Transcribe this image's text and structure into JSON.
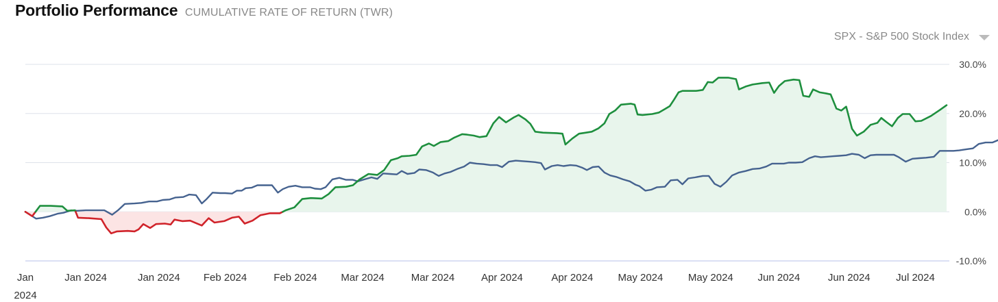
{
  "header": {
    "title": "Portfolio Performance",
    "subtitle": "CUMULATIVE RATE OF RETURN (TWR)"
  },
  "benchmark": {
    "label": "SPX - S&P 500 Stock Index"
  },
  "colors": {
    "portfolio_up": "#1e8f3e",
    "portfolio_down": "#d0232a",
    "fill_up": "#e8f5ec",
    "fill_down": "#fce4e4",
    "benchmark": "#45628f",
    "grid": "#dde2ea",
    "baseline": "#cdd5f0"
  },
  "chart_data": {
    "type": "line",
    "ylim": [
      -10,
      30
    ],
    "yticks": [
      "30.0%",
      "20.0%",
      "10.0%",
      "0.0%",
      "-10.0%"
    ],
    "ytick_values": [
      30,
      20,
      10,
      0,
      -10
    ],
    "grid": true,
    "xticks": [
      {
        "pos": 0,
        "label": "Jan",
        "label2": "2024"
      },
      {
        "pos": 6.2,
        "label": "Jan 2024"
      },
      {
        "pos": 13.7,
        "label": "Jan 2024"
      },
      {
        "pos": 20.5,
        "label": "Feb 2024"
      },
      {
        "pos": 27.7,
        "label": "Feb 2024"
      },
      {
        "pos": 34.6,
        "label": "Mar 2024"
      },
      {
        "pos": 41.8,
        "label": "Mar 2024"
      },
      {
        "pos": 48.9,
        "label": "Apr 2024"
      },
      {
        "pos": 56.1,
        "label": "Apr 2024"
      },
      {
        "pos": 63.1,
        "label": "May 2024"
      },
      {
        "pos": 70.3,
        "label": "May 2024"
      },
      {
        "pos": 77.3,
        "label": "Jun 2024"
      },
      {
        "pos": 84.5,
        "label": "Jun 2024"
      },
      {
        "pos": 91.3,
        "label": "Jul 2024"
      }
    ],
    "series": [
      {
        "role": "portfolio",
        "points": [
          [
            0,
            0
          ],
          [
            0.7,
            -0.9
          ],
          [
            1.5,
            1.2
          ],
          [
            2.6,
            1.2
          ],
          [
            3.8,
            1.1
          ],
          [
            4.3,
            0.2
          ],
          [
            5.1,
            0.3
          ],
          [
            5.4,
            -1.2
          ],
          [
            6.5,
            -1.3
          ],
          [
            7.8,
            -1.5
          ],
          [
            8.3,
            -3.2
          ],
          [
            8.8,
            -4.4
          ],
          [
            9.4,
            -4.0
          ],
          [
            10.5,
            -3.9
          ],
          [
            11.2,
            -4.0
          ],
          [
            11.6,
            -3.6
          ],
          [
            12.1,
            -2.5
          ],
          [
            12.8,
            -3.3
          ],
          [
            13.4,
            -2.5
          ],
          [
            14.3,
            -2.4
          ],
          [
            14.9,
            -2.6
          ],
          [
            15.3,
            -1.6
          ],
          [
            16.1,
            -1.9
          ],
          [
            16.9,
            -1.8
          ],
          [
            17.5,
            -2.3
          ],
          [
            18.1,
            -2.8
          ],
          [
            18.8,
            -1.3
          ],
          [
            19.4,
            -2.2
          ],
          [
            20.4,
            -1.9
          ],
          [
            21.2,
            -1.2
          ],
          [
            21.9,
            -1.0
          ],
          [
            22.5,
            -2.4
          ],
          [
            23.3,
            -1.8
          ],
          [
            24.1,
            -0.7
          ],
          [
            25.1,
            -0.3
          ],
          [
            26.1,
            -0.3
          ],
          [
            26.7,
            0.3
          ],
          [
            27.6,
            0.9
          ],
          [
            28.4,
            2.6
          ],
          [
            29.3,
            2.8
          ],
          [
            30.4,
            2.7
          ],
          [
            31.1,
            3.6
          ],
          [
            31.8,
            5.0
          ],
          [
            32.9,
            5.1
          ],
          [
            33.6,
            5.4
          ],
          [
            34.3,
            6.6
          ],
          [
            35.2,
            7.7
          ],
          [
            36.1,
            7.5
          ],
          [
            36.8,
            8.5
          ],
          [
            37.5,
            10.5
          ],
          [
            38.2,
            10.9
          ],
          [
            38.6,
            11.3
          ],
          [
            39.4,
            11.4
          ],
          [
            40.1,
            11.6
          ],
          [
            40.7,
            13.3
          ],
          [
            41.4,
            13.9
          ],
          [
            41.9,
            13.4
          ],
          [
            42.6,
            14.2
          ],
          [
            43.4,
            14.4
          ],
          [
            44.0,
            15.1
          ],
          [
            44.8,
            15.8
          ],
          [
            45.3,
            15.7
          ],
          [
            46.0,
            15.5
          ],
          [
            46.6,
            15.2
          ],
          [
            47.3,
            15.4
          ],
          [
            48.0,
            18.0
          ],
          [
            48.6,
            19.3
          ],
          [
            49.3,
            18.2
          ],
          [
            50.1,
            19.2
          ],
          [
            50.6,
            19.7
          ],
          [
            51.3,
            18.8
          ],
          [
            51.8,
            17.9
          ],
          [
            52.3,
            16.3
          ],
          [
            53.1,
            16.1
          ],
          [
            54.5,
            16.0
          ],
          [
            55.1,
            15.9
          ],
          [
            55.4,
            13.7
          ],
          [
            56.1,
            14.9
          ],
          [
            56.8,
            15.9
          ],
          [
            57.5,
            16.1
          ],
          [
            58.1,
            16.3
          ],
          [
            58.8,
            17.0
          ],
          [
            59.4,
            18.0
          ],
          [
            59.9,
            19.9
          ],
          [
            60.5,
            20.6
          ],
          [
            61.1,
            21.8
          ],
          [
            62.1,
            22.0
          ],
          [
            62.5,
            21.8
          ],
          [
            62.8,
            19.8
          ],
          [
            63.3,
            19.7
          ],
          [
            64.3,
            19.9
          ],
          [
            65.0,
            20.2
          ],
          [
            65.6,
            20.9
          ],
          [
            66.1,
            21.5
          ],
          [
            66.5,
            22.7
          ],
          [
            67.0,
            24.3
          ],
          [
            67.4,
            24.6
          ],
          [
            68.8,
            24.6
          ],
          [
            69.5,
            24.8
          ],
          [
            70.0,
            26.4
          ],
          [
            70.5,
            26.3
          ],
          [
            71.1,
            27.3
          ],
          [
            72.1,
            27.3
          ],
          [
            72.9,
            27.0
          ],
          [
            73.2,
            24.9
          ],
          [
            73.9,
            25.5
          ],
          [
            74.6,
            25.9
          ],
          [
            75.6,
            26.2
          ],
          [
            76.3,
            26.3
          ],
          [
            76.8,
            24.2
          ],
          [
            77.3,
            25.6
          ],
          [
            77.9,
            26.6
          ],
          [
            78.8,
            26.9
          ],
          [
            79.4,
            26.8
          ],
          [
            79.8,
            23.6
          ],
          [
            80.4,
            23.4
          ],
          [
            80.8,
            24.9
          ],
          [
            81.5,
            24.3
          ],
          [
            82.1,
            24.1
          ],
          [
            82.6,
            23.9
          ],
          [
            83.2,
            21.0
          ],
          [
            83.7,
            20.6
          ],
          [
            84.2,
            21.4
          ],
          [
            84.8,
            16.9
          ],
          [
            85.3,
            15.5
          ],
          [
            86.0,
            16.3
          ],
          [
            86.7,
            17.7
          ],
          [
            87.4,
            18.1
          ],
          [
            87.8,
            19.1
          ],
          [
            88.3,
            18.3
          ],
          [
            88.9,
            17.4
          ],
          [
            89.5,
            19.1
          ],
          [
            90.0,
            19.9
          ],
          [
            90.7,
            19.9
          ],
          [
            91.3,
            18.4
          ],
          [
            91.9,
            18.5
          ],
          [
            92.9,
            19.5
          ],
          [
            93.8,
            20.7
          ],
          [
            94.5,
            21.7
          ]
        ]
      },
      {
        "role": "benchmark",
        "points": [
          [
            0,
            0
          ],
          [
            1.1,
            -1.4
          ],
          [
            1.8,
            -1.2
          ],
          [
            2.5,
            -0.9
          ],
          [
            3.3,
            -0.4
          ],
          [
            3.9,
            -0.2
          ],
          [
            4.7,
            0.3
          ],
          [
            5.3,
            0.2
          ],
          [
            6.2,
            0.3
          ],
          [
            7.2,
            0.3
          ],
          [
            8.1,
            0.3
          ],
          [
            8.9,
            -0.6
          ],
          [
            9.5,
            0.3
          ],
          [
            10.2,
            1.6
          ],
          [
            11.2,
            1.7
          ],
          [
            11.9,
            1.8
          ],
          [
            12.7,
            2.1
          ],
          [
            13.5,
            2.1
          ],
          [
            14.1,
            2.4
          ],
          [
            14.8,
            2.5
          ],
          [
            15.4,
            2.9
          ],
          [
            16.2,
            3.0
          ],
          [
            16.8,
            3.5
          ],
          [
            17.5,
            3.4
          ],
          [
            18.1,
            1.7
          ],
          [
            18.6,
            2.6
          ],
          [
            19.2,
            3.9
          ],
          [
            20.0,
            3.8
          ],
          [
            20.5,
            3.8
          ],
          [
            21.2,
            3.7
          ],
          [
            21.7,
            4.3
          ],
          [
            22.2,
            4.3
          ],
          [
            22.6,
            4.8
          ],
          [
            23.2,
            4.9
          ],
          [
            23.8,
            5.4
          ],
          [
            24.6,
            5.4
          ],
          [
            25.3,
            5.4
          ],
          [
            25.9,
            3.9
          ],
          [
            26.4,
            4.6
          ],
          [
            27.0,
            5.1
          ],
          [
            27.7,
            5.3
          ],
          [
            28.4,
            5.0
          ],
          [
            29.2,
            5.0
          ],
          [
            29.7,
            4.7
          ],
          [
            30.3,
            4.6
          ],
          [
            30.8,
            5.0
          ],
          [
            31.5,
            6.6
          ],
          [
            32.2,
            6.9
          ],
          [
            32.9,
            6.5
          ],
          [
            33.6,
            6.5
          ],
          [
            34.1,
            6.2
          ],
          [
            34.8,
            6.6
          ],
          [
            35.5,
            7.0
          ],
          [
            36.1,
            6.7
          ],
          [
            36.7,
            7.8
          ],
          [
            37.4,
            7.7
          ],
          [
            38.1,
            7.6
          ],
          [
            38.6,
            8.3
          ],
          [
            39.2,
            7.7
          ],
          [
            39.9,
            7.9
          ],
          [
            40.4,
            8.6
          ],
          [
            41.1,
            8.5
          ],
          [
            41.8,
            8.0
          ],
          [
            42.4,
            7.3
          ],
          [
            43.0,
            7.8
          ],
          [
            43.6,
            8.1
          ],
          [
            44.3,
            8.7
          ],
          [
            45.0,
            9.2
          ],
          [
            45.6,
            10.0
          ],
          [
            46.3,
            9.8
          ],
          [
            47.0,
            9.7
          ],
          [
            47.7,
            9.5
          ],
          [
            48.4,
            9.5
          ],
          [
            48.9,
            9.1
          ],
          [
            49.6,
            10.2
          ],
          [
            50.3,
            10.4
          ],
          [
            51.0,
            10.3
          ],
          [
            51.7,
            10.2
          ],
          [
            52.3,
            10.1
          ],
          [
            52.9,
            9.9
          ],
          [
            53.3,
            8.6
          ],
          [
            54.0,
            9.3
          ],
          [
            54.6,
            9.5
          ],
          [
            55.2,
            9.3
          ],
          [
            55.9,
            9.5
          ],
          [
            56.5,
            9.4
          ],
          [
            57.1,
            9.0
          ],
          [
            57.6,
            8.5
          ],
          [
            58.2,
            9.1
          ],
          [
            58.8,
            9.2
          ],
          [
            59.4,
            8.0
          ],
          [
            60.0,
            7.4
          ],
          [
            60.6,
            7.1
          ],
          [
            61.3,
            6.6
          ],
          [
            62.0,
            6.2
          ],
          [
            62.6,
            5.5
          ],
          [
            63.0,
            5.2
          ],
          [
            63.6,
            4.3
          ],
          [
            64.2,
            4.5
          ],
          [
            64.8,
            5.0
          ],
          [
            65.6,
            5.1
          ],
          [
            66.2,
            6.4
          ],
          [
            66.9,
            6.5
          ],
          [
            67.4,
            5.6
          ],
          [
            68.0,
            6.8
          ],
          [
            68.7,
            7.0
          ],
          [
            69.5,
            7.3
          ],
          [
            70.1,
            7.3
          ],
          [
            70.7,
            5.7
          ],
          [
            71.3,
            5.1
          ],
          [
            71.9,
            6.1
          ],
          [
            72.5,
            7.4
          ],
          [
            73.2,
            8.0
          ],
          [
            73.9,
            8.3
          ],
          [
            74.6,
            8.7
          ],
          [
            75.3,
            8.8
          ],
          [
            76.0,
            9.2
          ],
          [
            76.6,
            9.8
          ],
          [
            77.2,
            9.8
          ],
          [
            77.8,
            9.8
          ],
          [
            78.3,
            10.0
          ],
          [
            79.0,
            10.0
          ],
          [
            79.7,
            10.1
          ],
          [
            80.4,
            10.9
          ],
          [
            81.0,
            11.3
          ],
          [
            81.6,
            11.1
          ],
          [
            82.2,
            11.2
          ],
          [
            82.8,
            11.3
          ],
          [
            83.5,
            11.4
          ],
          [
            84.2,
            11.5
          ],
          [
            84.8,
            11.8
          ],
          [
            85.5,
            11.6
          ],
          [
            86.1,
            10.9
          ],
          [
            86.7,
            11.5
          ],
          [
            87.3,
            11.6
          ],
          [
            87.9,
            11.6
          ],
          [
            88.5,
            11.6
          ],
          [
            89.1,
            11.6
          ],
          [
            89.6,
            11.1
          ],
          [
            90.3,
            10.2
          ],
          [
            91.0,
            10.8
          ],
          [
            91.7,
            10.9
          ],
          [
            92.4,
            11.0
          ],
          [
            93.2,
            11.2
          ],
          [
            93.8,
            12.4
          ],
          [
            94.4,
            12.4
          ],
          [
            95.2,
            12.4
          ],
          [
            95.8,
            12.5
          ],
          [
            96.5,
            12.7
          ],
          [
            97.2,
            12.9
          ],
          [
            97.8,
            13.8
          ],
          [
            98.5,
            14.1
          ],
          [
            99.2,
            14.1
          ],
          [
            99.8,
            14.6
          ],
          [
            100.5,
            15.2
          ],
          [
            101.1,
            15.1
          ],
          [
            101.8,
            14.8
          ],
          [
            102.4,
            14.6
          ],
          [
            103.1,
            14.4
          ],
          [
            103.7,
            14.3
          ],
          [
            104.3,
            14.7
          ],
          [
            105.0,
            14.9
          ],
          [
            105.6,
            14.5
          ]
        ]
      }
    ]
  }
}
